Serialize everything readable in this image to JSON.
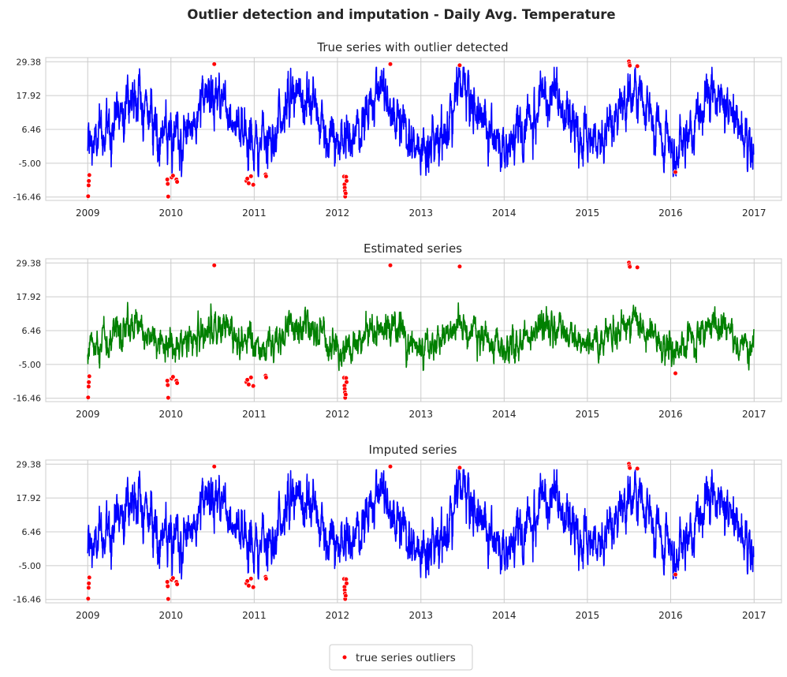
{
  "figure": {
    "suptitle": "Outlier detection and imputation - Daily Avg. Temperature",
    "legend_label": "true series outliers",
    "outlier_color": "#ff0000"
  },
  "chart_data": [
    {
      "type": "line",
      "title": "True series with outlier detected",
      "series": [],
      "line_color": "#0000ff",
      "xlim": [
        "2008-07-01",
        "2017-05-01"
      ],
      "ylim": [
        -17.6,
        30.8
      ],
      "y_ticks": [
        "29.38",
        "17.92",
        "6.46",
        "-5.00",
        "-16.46"
      ],
      "x_ticks": [
        "2009",
        "2010",
        "2011",
        "2012",
        "2013",
        "2014",
        "2015",
        "2016",
        "2017"
      ],
      "grid": true,
      "seasonal_shape": {
        "mean": 9.5,
        "amplitude": 8.5,
        "noise": 3.2,
        "low": -9.5,
        "high": 27.5
      }
    },
    {
      "type": "line",
      "title": "Estimated series",
      "series": [],
      "line_color": "#008000",
      "xlim": [
        "2008-07-01",
        "2017-05-01"
      ],
      "ylim": [
        -17.6,
        30.8
      ],
      "y_ticks": [
        "29.38",
        "17.92",
        "6.46",
        "-5.00",
        "-16.46"
      ],
      "x_ticks": [
        "2009",
        "2010",
        "2011",
        "2012",
        "2013",
        "2014",
        "2015",
        "2016",
        "2017"
      ],
      "grid": true,
      "seasonal_shape": {
        "mean": 4.5,
        "amplitude": 3.5,
        "noise": 2.0,
        "low": -7.0,
        "high": 16.0
      }
    },
    {
      "type": "line",
      "title": "Imputed series",
      "series": [],
      "line_color": "#0000ff",
      "xlim": [
        "2008-07-01",
        "2017-05-01"
      ],
      "ylim": [
        -17.6,
        30.8
      ],
      "y_ticks": [
        "29.38",
        "17.92",
        "6.46",
        "-5.00",
        "-16.46"
      ],
      "x_ticks": [
        "2009",
        "2010",
        "2011",
        "2012",
        "2013",
        "2014",
        "2015",
        "2016",
        "2017"
      ],
      "grid": true,
      "seasonal_shape": {
        "mean": 9.5,
        "amplitude": 8.5,
        "noise": 3.2,
        "low": -9.5,
        "high": 27.5
      }
    }
  ],
  "outliers": [
    {
      "date": "2009-01-03",
      "value": -16.2
    },
    {
      "date": "2009-01-05",
      "value": -12.5
    },
    {
      "date": "2009-01-06",
      "value": -11.0
    },
    {
      "date": "2009-01-08",
      "value": -9.0
    },
    {
      "date": "2009-12-20",
      "value": -16.3
    },
    {
      "date": "2009-12-16",
      "value": -10.5
    },
    {
      "date": "2009-12-18",
      "value": -12.0
    },
    {
      "date": "2010-01-04",
      "value": -9.8
    },
    {
      "date": "2010-01-10",
      "value": -9.2
    },
    {
      "date": "2010-01-25",
      "value": -10.5
    },
    {
      "date": "2010-01-28",
      "value": -11.3
    },
    {
      "date": "2010-07-10",
      "value": 28.6
    },
    {
      "date": "2010-11-28",
      "value": -11.0
    },
    {
      "date": "2010-12-02",
      "value": -10.2
    },
    {
      "date": "2010-12-08",
      "value": -11.8
    },
    {
      "date": "2010-12-18",
      "value": -9.4
    },
    {
      "date": "2010-12-28",
      "value": -12.3
    },
    {
      "date": "2011-02-20",
      "value": -8.8
    },
    {
      "date": "2011-02-22",
      "value": -9.4
    },
    {
      "date": "2012-01-30",
      "value": -9.5
    },
    {
      "date": "2012-02-01",
      "value": -12.2
    },
    {
      "date": "2012-02-02",
      "value": -13.3
    },
    {
      "date": "2012-02-03",
      "value": -14.5
    },
    {
      "date": "2012-02-04",
      "value": -16.3
    },
    {
      "date": "2012-02-06",
      "value": -15.2
    },
    {
      "date": "2012-02-08",
      "value": -9.6
    },
    {
      "date": "2012-02-10",
      "value": -11.0
    },
    {
      "date": "2012-08-20",
      "value": 28.6
    },
    {
      "date": "2013-06-20",
      "value": 28.2
    },
    {
      "date": "2015-07-02",
      "value": 29.5
    },
    {
      "date": "2015-07-04",
      "value": 28.7
    },
    {
      "date": "2015-07-06",
      "value": 28.1
    },
    {
      "date": "2015-08-08",
      "value": 27.9
    },
    {
      "date": "2016-01-22",
      "value": -8.0
    }
  ]
}
